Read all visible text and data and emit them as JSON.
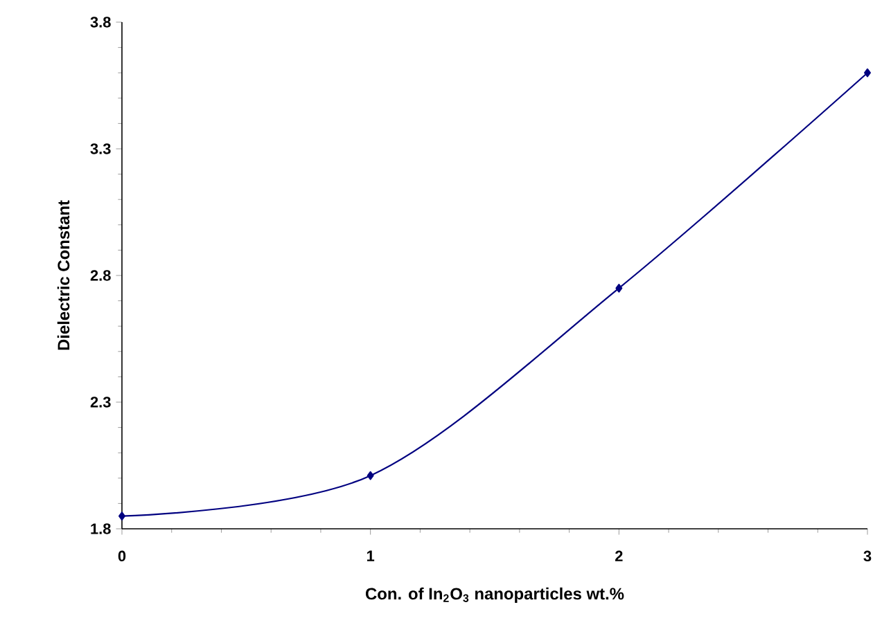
{
  "chart_data": {
    "type": "line",
    "xlabel": "Con. of In$_{2}$O$_{3}$ nanoparticles wt.%",
    "ylabel": "Dielectric Constant",
    "x": [
      0,
      1,
      2,
      3
    ],
    "series": [
      {
        "color": "#000080",
        "values": [
          1.85,
          2.01,
          2.75,
          3.6
        ]
      }
    ],
    "xlim": [
      0,
      3
    ],
    "xticks": [
      0,
      1,
      2,
      3
    ],
    "ylim": [
      1.8,
      3.8
    ],
    "yticks": [
      1.8,
      2.3,
      2.8,
      3.3,
      3.8
    ],
    "marker": "diamond",
    "line_style": "solid",
    "grid": false
  }
}
